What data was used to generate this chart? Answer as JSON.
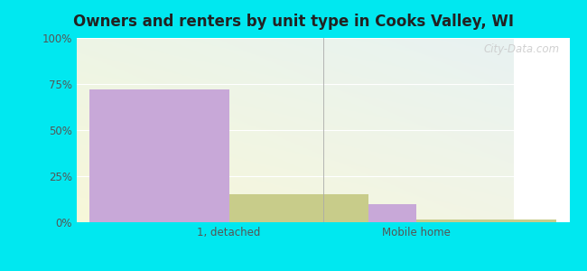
{
  "title": "Owners and renters by unit type in Cooks Valley, WI",
  "categories": [
    "1, detached",
    "Mobile home"
  ],
  "owner_values": [
    72.0,
    10.0
  ],
  "renter_values": [
    15.0,
    1.5
  ],
  "owner_color": "#c8a8d8",
  "renter_color": "#c8cc8a",
  "ylim": [
    0,
    100
  ],
  "yticks": [
    0,
    25,
    50,
    75,
    100
  ],
  "ytick_labels": [
    "0%",
    "25%",
    "50%",
    "75%",
    "100%"
  ],
  "outer_bg": "#00e8f0",
  "bar_width": 0.32,
  "group_positions": [
    0.35,
    0.78
  ],
  "watermark": "City-Data.com",
  "title_fontsize": 12,
  "tick_fontsize": 8.5
}
